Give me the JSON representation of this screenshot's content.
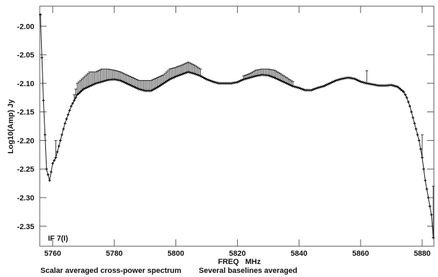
{
  "chart_data": {
    "type": "line",
    "title": "",
    "xlabel": "FREQ   MHz",
    "ylabel": "Log10(Amp) Jy",
    "annotation": "IF 7(I)",
    "footer_left": "Scalar averaged cross-power spectrum",
    "footer_right": "Several baselines averaged",
    "xlim": [
      5755.8,
      5883.8
    ],
    "ylim": [
      -2.385,
      -1.965
    ],
    "xticks": [
      5760,
      5780,
      5800,
      5820,
      5840,
      5860,
      5880
    ],
    "xtick_labels": [
      "5760",
      "5780",
      "5800",
      "5820",
      "5840",
      "5860",
      "5880"
    ],
    "yticks": [
      -2.0,
      -2.05,
      -2.1,
      -2.15,
      -2.2,
      -2.25,
      -2.3,
      -2.35
    ],
    "ytick_labels": [
      "-2.00",
      "-2.05",
      "-2.10",
      "-2.15",
      "-2.20",
      "-2.25",
      "-2.30",
      "-2.35"
    ],
    "grid": false,
    "series": [
      {
        "name": "IF 7(I)",
        "x": [
          5756,
          5757,
          5758,
          5759,
          5760,
          5761,
          5762,
          5763,
          5764,
          5765,
          5766,
          5767,
          5768,
          5769,
          5770,
          5772,
          5774,
          5776,
          5778,
          5780,
          5782,
          5784,
          5786,
          5788,
          5790,
          5792,
          5794,
          5796,
          5798,
          5800,
          5802,
          5804,
          5806,
          5808,
          5810,
          5812,
          5814,
          5816,
          5818,
          5820,
          5822,
          5824,
          5826,
          5828,
          5830,
          5832,
          5834,
          5836,
          5838,
          5840,
          5842,
          5844,
          5846,
          5848,
          5850,
          5852,
          5854,
          5856,
          5858,
          5860,
          5862,
          5864,
          5866,
          5868,
          5870,
          5872,
          5874,
          5875,
          5876,
          5877,
          5878,
          5879,
          5880,
          5881,
          5882,
          5883,
          5883.6
        ],
        "y": [
          -1.98,
          -2.13,
          -2.25,
          -2.27,
          -2.24,
          -2.23,
          -2.21,
          -2.19,
          -2.17,
          -2.155,
          -2.14,
          -2.13,
          -2.12,
          -2.115,
          -2.11,
          -2.105,
          -2.1,
          -2.097,
          -2.094,
          -2.093,
          -2.095,
          -2.1,
          -2.105,
          -2.11,
          -2.113,
          -2.113,
          -2.107,
          -2.1,
          -2.093,
          -2.088,
          -2.084,
          -2.08,
          -2.083,
          -2.087,
          -2.093,
          -2.097,
          -2.1,
          -2.1,
          -2.1,
          -2.098,
          -2.093,
          -2.09,
          -2.087,
          -2.085,
          -2.086,
          -2.09,
          -2.095,
          -2.1,
          -2.105,
          -2.108,
          -2.112,
          -2.112,
          -2.108,
          -2.105,
          -2.1,
          -2.095,
          -2.092,
          -2.09,
          -2.092,
          -2.097,
          -2.1,
          -2.102,
          -2.104,
          -2.104,
          -2.103,
          -2.106,
          -2.115,
          -2.125,
          -2.14,
          -2.16,
          -2.18,
          -2.2,
          -2.23,
          -2.27,
          -2.3,
          -2.33,
          -2.37
        ],
        "y_upper": [
          -1.98,
          -2.13,
          -2.25,
          -2.27,
          -2.24,
          -2.2,
          -2.21,
          -2.19,
          -2.17,
          -2.155,
          -2.14,
          -2.12,
          -2.1,
          -2.095,
          -2.09,
          -2.08,
          -2.08,
          -2.075,
          -2.075,
          -2.077,
          -2.08,
          -2.085,
          -2.09,
          -2.095,
          -2.095,
          -2.095,
          -2.09,
          -2.085,
          -2.075,
          -2.072,
          -2.068,
          -2.063,
          -2.068,
          -2.075,
          -2.093,
          -2.097,
          -2.1,
          -2.1,
          -2.1,
          -2.098,
          -2.087,
          -2.083,
          -2.077,
          -2.075,
          -2.075,
          -2.077,
          -2.083,
          -2.09,
          -2.097,
          -2.108,
          -2.112,
          -2.112,
          -2.108,
          -2.105,
          -2.1,
          -2.095,
          -2.092,
          -2.09,
          -2.092,
          -2.097,
          -2.078,
          -2.102,
          -2.104,
          -2.104,
          -2.103,
          -2.106,
          -2.115,
          -2.125,
          -2.14,
          -2.16,
          -2.18,
          -2.2,
          -2.19,
          -2.27,
          -2.3,
          -2.33,
          -2.28
        ]
      }
    ]
  }
}
